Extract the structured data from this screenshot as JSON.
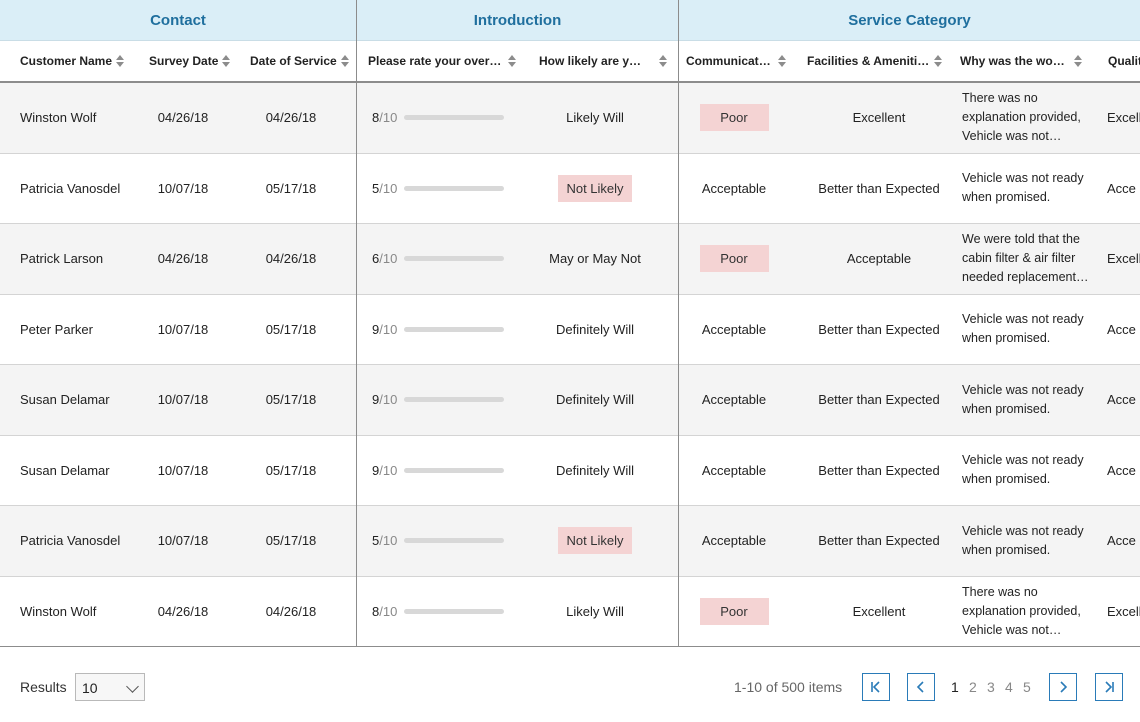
{
  "groups": {
    "contact": "Contact",
    "introduction": "Introduction",
    "service": "Service Category"
  },
  "columns": {
    "name": "Customer Name",
    "survey": "Survey Date",
    "service": "Date of Service",
    "rate": "Please rate your overall…",
    "likely": "How likely are you…",
    "comm": "Communication",
    "fac": "Facilities & Amenities",
    "why": "Why was the work…",
    "qual": "Qualit"
  },
  "colors": {
    "green": "#6cc070",
    "red": "#d63b3b",
    "orange": "#f0a040",
    "badge": "#f4d3d3",
    "accent": "#2a7bb8"
  },
  "rows": [
    {
      "name": "Winston Wolf",
      "survey": "04/26/18",
      "service": "04/26/18",
      "score": "8",
      "denom": "/10",
      "scoreValue": 0.8,
      "barColor": "green",
      "likely": "Likely Will",
      "likelyBadge": false,
      "comm": "Poor",
      "commBadge": true,
      "fac": "Excellent",
      "why": "There was no explanation provided, Vehicle was not…",
      "qual": "Excell"
    },
    {
      "name": "Patricia Vanosdel",
      "survey": "10/07/18",
      "service": "05/17/18",
      "score": "5",
      "denom": "/10",
      "scoreValue": 0.5,
      "barColor": "red",
      "likely": "Not Likely",
      "likelyBadge": true,
      "comm": "Acceptable",
      "commBadge": false,
      "fac": "Better than Expected",
      "why": "Vehicle was not ready when promised.",
      "qual": "Acce"
    },
    {
      "name": "Patrick Larson",
      "survey": "04/26/18",
      "service": "04/26/18",
      "score": "6",
      "denom": "/10",
      "scoreValue": 0.6,
      "barColor": "orange",
      "likely": "May or May Not",
      "likelyBadge": false,
      "comm": "Poor",
      "commBadge": true,
      "fac": "Acceptable",
      "why": "We were told that the cabin filter & air filter needed replacement…",
      "qual": "Excell"
    },
    {
      "name": "Peter Parker",
      "survey": "10/07/18",
      "service": "05/17/18",
      "score": "9",
      "denom": "/10",
      "scoreValue": 0.9,
      "barColor": "green",
      "likely": "Definitely Will",
      "likelyBadge": false,
      "comm": "Acceptable",
      "commBadge": false,
      "fac": "Better than Expected",
      "why": "Vehicle was not ready when promised.",
      "qual": "Acce"
    },
    {
      "name": "Susan Delamar",
      "survey": "10/07/18",
      "service": "05/17/18",
      "score": "9",
      "denom": "/10",
      "scoreValue": 0.9,
      "barColor": "green",
      "likely": "Definitely Will",
      "likelyBadge": false,
      "comm": "Acceptable",
      "commBadge": false,
      "fac": "Better than Expected",
      "why": "Vehicle was not ready when promised.",
      "qual": "Acce"
    },
    {
      "name": "Susan Delamar",
      "survey": "10/07/18",
      "service": "05/17/18",
      "score": "9",
      "denom": "/10",
      "scoreValue": 0.9,
      "barColor": "green",
      "likely": "Definitely Will",
      "likelyBadge": false,
      "comm": "Acceptable",
      "commBadge": false,
      "fac": "Better than Expected",
      "why": "Vehicle was not ready when promised.",
      "qual": "Acce"
    },
    {
      "name": "Patricia Vanosdel",
      "survey": "10/07/18",
      "service": "05/17/18",
      "score": "5",
      "denom": "/10",
      "scoreValue": 0.5,
      "barColor": "red",
      "likely": "Not Likely",
      "likelyBadge": true,
      "comm": "Acceptable",
      "commBadge": false,
      "fac": "Better than Expected",
      "why": "Vehicle was not ready when promised.",
      "qual": "Acce"
    },
    {
      "name": "Winston Wolf",
      "survey": "04/26/18",
      "service": "04/26/18",
      "score": "8",
      "denom": "/10",
      "scoreValue": 0.8,
      "barColor": "green",
      "likely": "Likely Will",
      "likelyBadge": false,
      "comm": "Poor",
      "commBadge": true,
      "fac": "Excellent",
      "why": "There was no explanation provided, Vehicle was not…",
      "qual": "Excell"
    }
  ],
  "footer": {
    "results_label": "Results",
    "page_size": "10",
    "items_text": "1-10 of 500 items",
    "pages": [
      "1",
      "2",
      "3",
      "4",
      "5"
    ],
    "current_page": "1"
  },
  "icons": {
    "first": "first-page-icon",
    "prev": "prev-page-icon",
    "next": "next-page-icon",
    "last": "last-page-icon"
  }
}
